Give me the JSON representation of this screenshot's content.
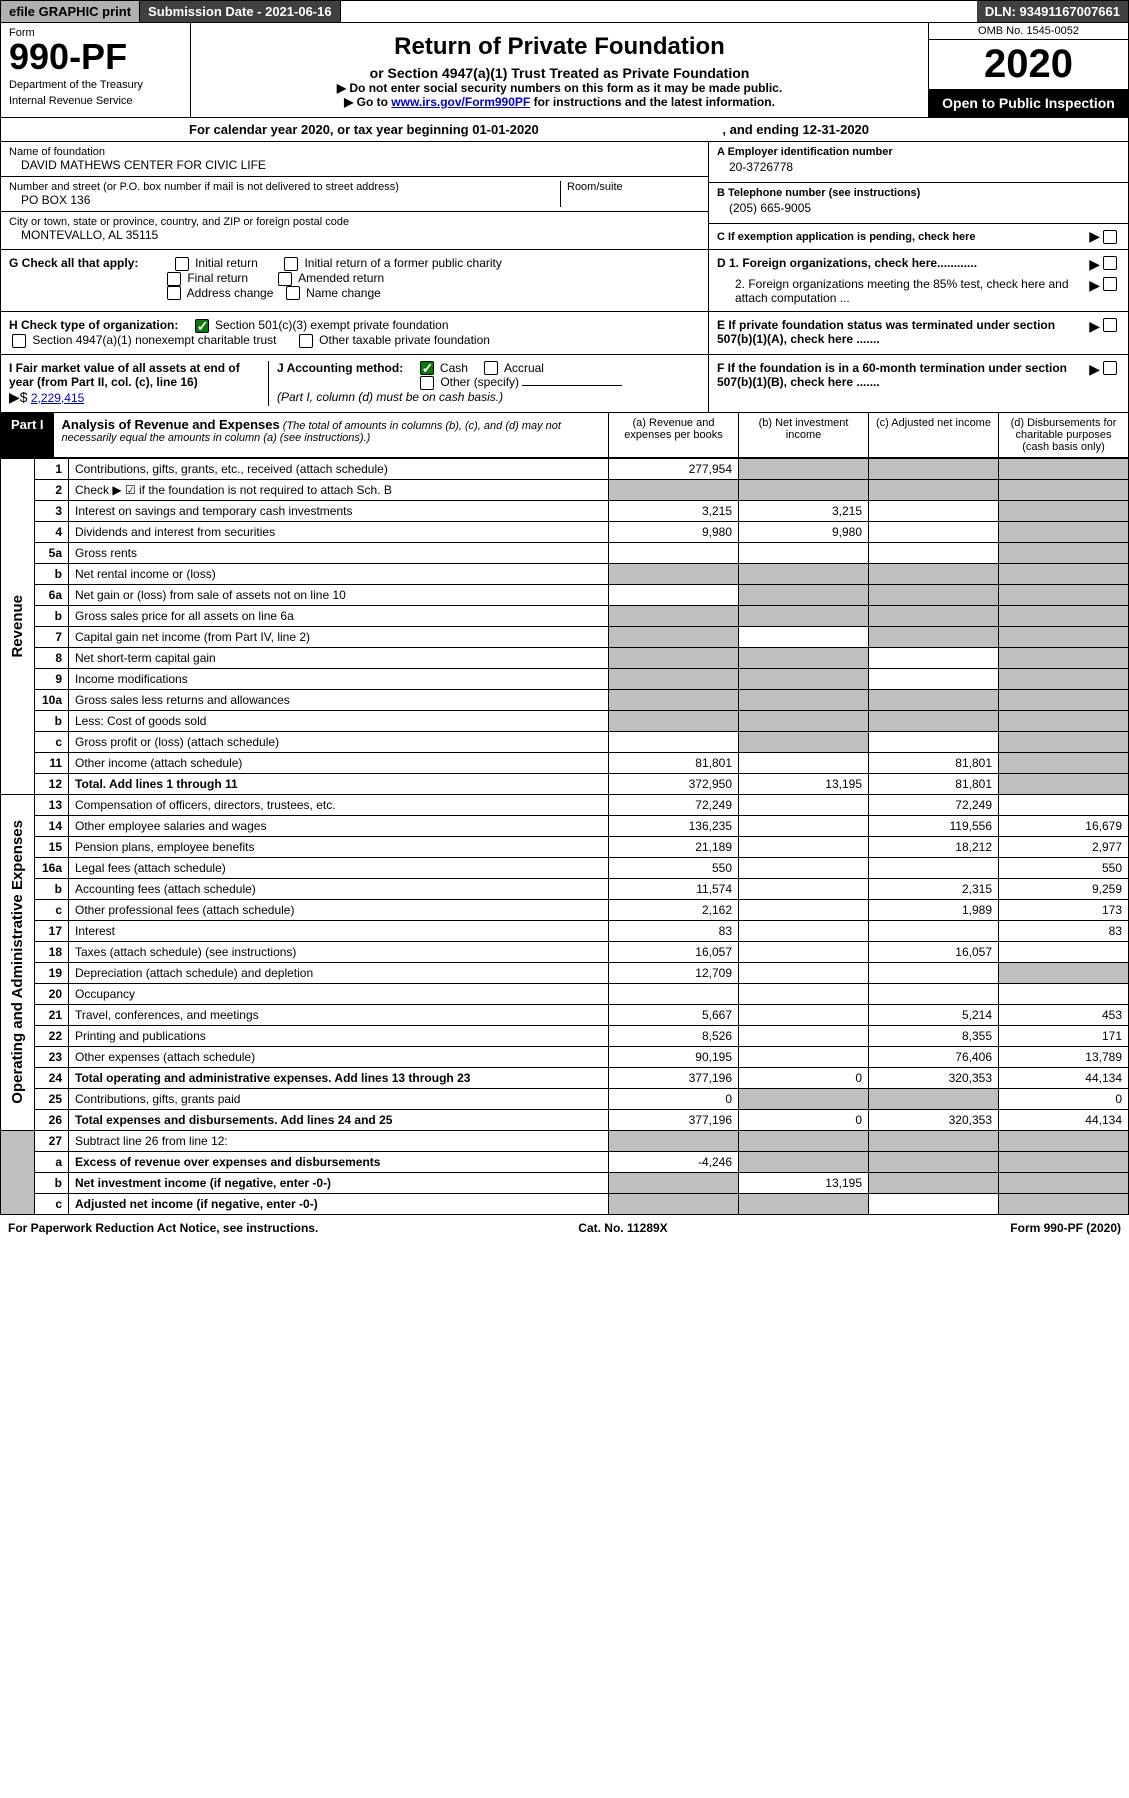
{
  "top": {
    "efile": "efile GRAPHIC print",
    "submission": "Submission Date - 2021-06-16",
    "dln": "DLN: 93491167007661"
  },
  "header": {
    "form_label": "Form",
    "form_num": "990-PF",
    "dept1": "Department of the Treasury",
    "dept2": "Internal Revenue Service",
    "title": "Return of Private Foundation",
    "subtitle": "or Section 4947(a)(1) Trust Treated as Private Foundation",
    "note1": "▶ Do not enter social security numbers on this form as it may be made public.",
    "note2_pre": "▶ Go to ",
    "note2_link": "www.irs.gov/Form990PF",
    "note2_post": " for instructions and the latest information.",
    "omb": "OMB No. 1545-0052",
    "year": "2020",
    "open": "Open to Public Inspection"
  },
  "calendar": {
    "text": "For calendar year 2020, or tax year beginning 01-01-2020",
    "ending": ", and ending 12-31-2020"
  },
  "entity": {
    "name_label": "Name of foundation",
    "name": "DAVID MATHEWS CENTER FOR CIVIC LIFE",
    "addr_label": "Number and street (or P.O. box number if mail is not delivered to street address)",
    "addr": "PO BOX 136",
    "room_label": "Room/suite",
    "city_label": "City or town, state or province, country, and ZIP or foreign postal code",
    "city": "MONTEVALLO, AL  35115",
    "A_label": "A Employer identification number",
    "A_val": "20-3726778",
    "B_label": "B Telephone number (see instructions)",
    "B_val": "(205) 665-9005",
    "C_label": "C If exemption application is pending, check here"
  },
  "G": {
    "label": "G Check all that apply:",
    "initial": "Initial return",
    "initial_former": "Initial return of a former public charity",
    "final": "Final return",
    "amended": "Amended return",
    "addr_change": "Address change",
    "name_change": "Name change"
  },
  "H": {
    "label": "H Check type of organization:",
    "opt1": "Section 501(c)(3) exempt private foundation",
    "opt2": "Section 4947(a)(1) nonexempt charitable trust",
    "opt3": "Other taxable private foundation"
  },
  "I": {
    "label": "I Fair market value of all assets at end of year (from Part II, col. (c), line 16)",
    "arrow": "▶$",
    "value": "2,229,415"
  },
  "J": {
    "label": "J Accounting method:",
    "cash": "Cash",
    "accrual": "Accrual",
    "other": "Other (specify)",
    "note": "(Part I, column (d) must be on cash basis.)"
  },
  "D": {
    "d1": "D 1. Foreign organizations, check here............",
    "d2": "2. Foreign organizations meeting the 85% test, check here and attach computation ..."
  },
  "E": "E  If private foundation status was terminated under section 507(b)(1)(A), check here .......",
  "F": "F  If the foundation is in a 60-month termination under section 507(b)(1)(B), check here .......",
  "part1": {
    "tag": "Part I",
    "title": "Analysis of Revenue and Expenses",
    "sub": "(The total of amounts in columns (b), (c), and (d) may not necessarily equal the amounts in column (a) (see instructions).)",
    "col_a": "(a)   Revenue and expenses per books",
    "col_b": "(b)   Net investment income",
    "col_c": "(c)   Adjusted net income",
    "col_d": "(d)  Disbursements for charitable purposes (cash basis only)"
  },
  "sections": {
    "revenue": "Revenue",
    "opex": "Operating and Administrative Expenses"
  },
  "rows": [
    {
      "n": "1",
      "label": "Contributions, gifts, grants, etc., received (attach schedule)",
      "a": "277,954",
      "b": "",
      "c": "",
      "d": "",
      "shade": [
        "b",
        "c",
        "d"
      ]
    },
    {
      "n": "2",
      "label": "Check ▶ ☑ if the foundation is not required to attach Sch. B",
      "a": "",
      "b": "",
      "c": "",
      "d": "",
      "shade": [
        "a",
        "b",
        "c",
        "d"
      ],
      "bold_not": true
    },
    {
      "n": "3",
      "label": "Interest on savings and temporary cash investments",
      "a": "3,215",
      "b": "3,215",
      "c": "",
      "d": "",
      "shade": [
        "d"
      ]
    },
    {
      "n": "4",
      "label": "Dividends and interest from securities",
      "a": "9,980",
      "b": "9,980",
      "c": "",
      "d": "",
      "shade": [
        "d"
      ]
    },
    {
      "n": "5a",
      "label": "Gross rents",
      "a": "",
      "b": "",
      "c": "",
      "d": "",
      "shade": [
        "d"
      ]
    },
    {
      "n": "b",
      "label": "Net rental income or (loss)",
      "a": "",
      "b": "",
      "c": "",
      "d": "",
      "shade": [
        "a",
        "b",
        "c",
        "d"
      ],
      "underline": true
    },
    {
      "n": "6a",
      "label": "Net gain or (loss) from sale of assets not on line 10",
      "a": "",
      "b": "",
      "c": "",
      "d": "",
      "shade": [
        "b",
        "c",
        "d"
      ]
    },
    {
      "n": "b",
      "label": "Gross sales price for all assets on line 6a",
      "a": "",
      "b": "",
      "c": "",
      "d": "",
      "shade": [
        "a",
        "b",
        "c",
        "d"
      ],
      "underline": true
    },
    {
      "n": "7",
      "label": "Capital gain net income (from Part IV, line 2)",
      "a": "",
      "b": "",
      "c": "",
      "d": "",
      "shade": [
        "a",
        "c",
        "d"
      ]
    },
    {
      "n": "8",
      "label": "Net short-term capital gain",
      "a": "",
      "b": "",
      "c": "",
      "d": "",
      "shade": [
        "a",
        "b",
        "d"
      ]
    },
    {
      "n": "9",
      "label": "Income modifications",
      "a": "",
      "b": "",
      "c": "",
      "d": "",
      "shade": [
        "a",
        "b",
        "d"
      ]
    },
    {
      "n": "10a",
      "label": "Gross sales less returns and allowances",
      "a": "",
      "b": "",
      "c": "",
      "d": "",
      "shade": [
        "a",
        "b",
        "c",
        "d"
      ],
      "underline": true
    },
    {
      "n": "b",
      "label": "Less: Cost of goods sold",
      "a": "",
      "b": "",
      "c": "",
      "d": "",
      "shade": [
        "a",
        "b",
        "c",
        "d"
      ],
      "underline": true
    },
    {
      "n": "c",
      "label": "Gross profit or (loss) (attach schedule)",
      "a": "",
      "b": "",
      "c": "",
      "d": "",
      "shade": [
        "b",
        "d"
      ]
    },
    {
      "n": "11",
      "label": "Other income (attach schedule)",
      "a": "81,801",
      "b": "",
      "c": "81,801",
      "d": "",
      "shade": [
        "d"
      ]
    },
    {
      "n": "12",
      "label": "Total. Add lines 1 through 11",
      "a": "372,950",
      "b": "13,195",
      "c": "81,801",
      "d": "",
      "shade": [
        "d"
      ],
      "bold": true
    }
  ],
  "exp_rows": [
    {
      "n": "13",
      "label": "Compensation of officers, directors, trustees, etc.",
      "a": "72,249",
      "b": "",
      "c": "72,249",
      "d": ""
    },
    {
      "n": "14",
      "label": "Other employee salaries and wages",
      "a": "136,235",
      "b": "",
      "c": "119,556",
      "d": "16,679"
    },
    {
      "n": "15",
      "label": "Pension plans, employee benefits",
      "a": "21,189",
      "b": "",
      "c": "18,212",
      "d": "2,977"
    },
    {
      "n": "16a",
      "label": "Legal fees (attach schedule)",
      "a": "550",
      "b": "",
      "c": "",
      "d": "550"
    },
    {
      "n": "b",
      "label": "Accounting fees (attach schedule)",
      "a": "11,574",
      "b": "",
      "c": "2,315",
      "d": "9,259"
    },
    {
      "n": "c",
      "label": "Other professional fees (attach schedule)",
      "a": "2,162",
      "b": "",
      "c": "1,989",
      "d": "173"
    },
    {
      "n": "17",
      "label": "Interest",
      "a": "83",
      "b": "",
      "c": "",
      "d": "83"
    },
    {
      "n": "18",
      "label": "Taxes (attach schedule) (see instructions)",
      "a": "16,057",
      "b": "",
      "c": "16,057",
      "d": ""
    },
    {
      "n": "19",
      "label": "Depreciation (attach schedule) and depletion",
      "a": "12,709",
      "b": "",
      "c": "",
      "d": "",
      "shade": [
        "d"
      ]
    },
    {
      "n": "20",
      "label": "Occupancy",
      "a": "",
      "b": "",
      "c": "",
      "d": ""
    },
    {
      "n": "21",
      "label": "Travel, conferences, and meetings",
      "a": "5,667",
      "b": "",
      "c": "5,214",
      "d": "453"
    },
    {
      "n": "22",
      "label": "Printing and publications",
      "a": "8,526",
      "b": "",
      "c": "8,355",
      "d": "171"
    },
    {
      "n": "23",
      "label": "Other expenses (attach schedule)",
      "a": "90,195",
      "b": "",
      "c": "76,406",
      "d": "13,789"
    },
    {
      "n": "24",
      "label": "Total operating and administrative expenses. Add lines 13 through 23",
      "a": "377,196",
      "b": "0",
      "c": "320,353",
      "d": "44,134",
      "bold": true
    },
    {
      "n": "25",
      "label": "Contributions, gifts, grants paid",
      "a": "0",
      "b": "",
      "c": "",
      "d": "0",
      "shade": [
        "b",
        "c"
      ]
    },
    {
      "n": "26",
      "label": "Total expenses and disbursements. Add lines 24 and 25",
      "a": "377,196",
      "b": "0",
      "c": "320,353",
      "d": "44,134",
      "bold": true
    }
  ],
  "bottom_rows": [
    {
      "n": "27",
      "label": "Subtract line 26 from line 12:",
      "a": "",
      "b": "",
      "c": "",
      "d": "",
      "shade": [
        "a",
        "b",
        "c",
        "d"
      ]
    },
    {
      "n": "a",
      "label": "Excess of revenue over expenses and disbursements",
      "a": "-4,246",
      "b": "",
      "c": "",
      "d": "",
      "shade": [
        "b",
        "c",
        "d"
      ],
      "bold": true
    },
    {
      "n": "b",
      "label": "Net investment income (if negative, enter -0-)",
      "a": "",
      "b": "13,195",
      "c": "",
      "d": "",
      "shade": [
        "a",
        "c",
        "d"
      ],
      "bold": true
    },
    {
      "n": "c",
      "label": "Adjusted net income (if negative, enter -0-)",
      "a": "",
      "b": "",
      "c": "",
      "d": "",
      "shade": [
        "a",
        "b",
        "d"
      ],
      "bold": true
    }
  ],
  "footer": {
    "left": "For Paperwork Reduction Act Notice, see instructions.",
    "mid": "Cat. No. 11289X",
    "right": "Form 990-PF (2020)"
  }
}
